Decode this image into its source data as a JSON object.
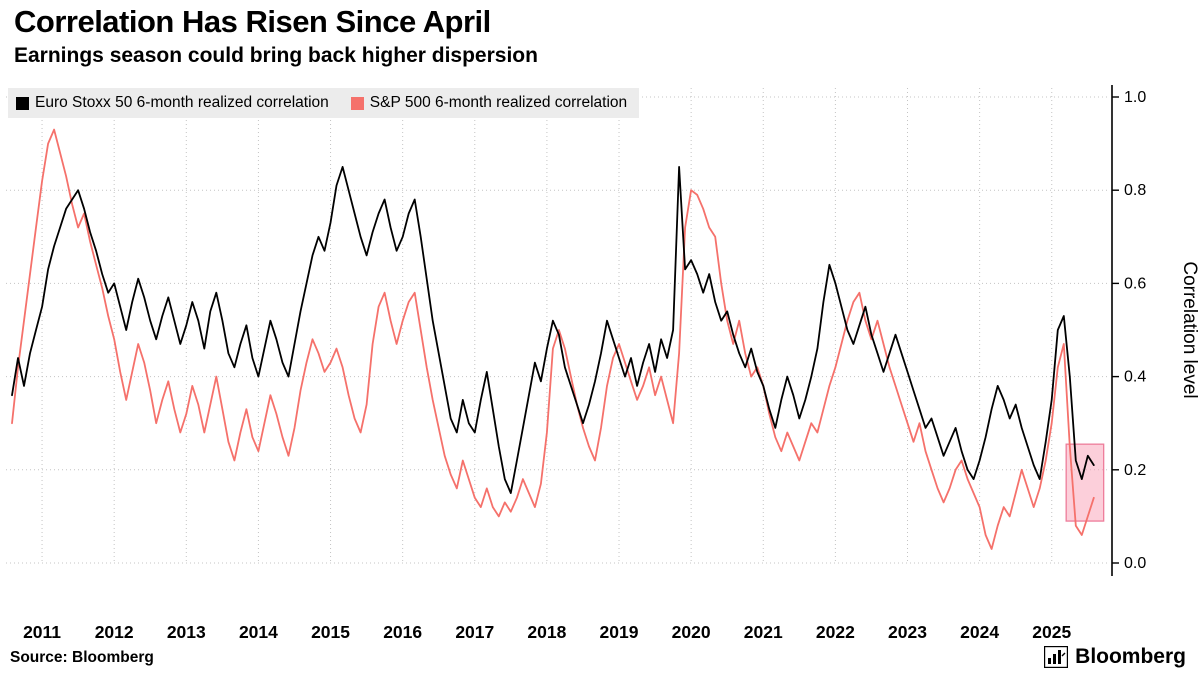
{
  "header": {
    "title": "Correlation Has Risen Since April",
    "subtitle": "Earnings season could bring back higher dispersion"
  },
  "legend": {
    "items": [
      {
        "label": "Euro Stoxx 50 6-month realized correlation",
        "color": "#000000"
      },
      {
        "label": "S&P 500 6-month realized correlation",
        "color": "#f5716b"
      }
    ]
  },
  "footer": {
    "source": "Source: Bloomberg",
    "brand": "Bloomberg"
  },
  "chart_data": {
    "type": "line",
    "title": "Correlation Has Risen Since April",
    "subtitle": "Earnings season could bring back higher dispersion",
    "xlabel": "",
    "ylabel": "Correlation level",
    "ylim": [
      0.0,
      1.0
    ],
    "y_ticks": [
      0.0,
      0.2,
      0.4,
      0.6,
      0.8,
      1.0
    ],
    "x_ticks": [
      2011,
      2012,
      2013,
      2014,
      2015,
      2016,
      2017,
      2018,
      2019,
      2020,
      2021,
      2022,
      2023,
      2024,
      2025
    ],
    "x_range": [
      2010.5,
      2025.78
    ],
    "x_start": 2010.5833,
    "x_step_years": 0.0833333,
    "grid": "dotted",
    "legend_position": "top-left",
    "series": [
      {
        "name": "Euro Stoxx 50 6-month realized correlation",
        "color": "#000000",
        "values": [
          0.36,
          0.44,
          0.38,
          0.45,
          0.5,
          0.55,
          0.63,
          0.68,
          0.72,
          0.76,
          0.78,
          0.8,
          0.76,
          0.71,
          0.67,
          0.62,
          0.58,
          0.6,
          0.55,
          0.5,
          0.56,
          0.61,
          0.57,
          0.52,
          0.48,
          0.53,
          0.57,
          0.52,
          0.47,
          0.51,
          0.56,
          0.52,
          0.46,
          0.54,
          0.58,
          0.52,
          0.45,
          0.42,
          0.47,
          0.51,
          0.44,
          0.4,
          0.46,
          0.52,
          0.48,
          0.43,
          0.4,
          0.47,
          0.54,
          0.6,
          0.66,
          0.7,
          0.67,
          0.73,
          0.81,
          0.85,
          0.8,
          0.75,
          0.7,
          0.66,
          0.71,
          0.75,
          0.78,
          0.72,
          0.67,
          0.7,
          0.75,
          0.78,
          0.7,
          0.61,
          0.52,
          0.45,
          0.38,
          0.31,
          0.28,
          0.35,
          0.3,
          0.28,
          0.35,
          0.41,
          0.33,
          0.25,
          0.18,
          0.15,
          0.22,
          0.29,
          0.36,
          0.43,
          0.39,
          0.46,
          0.52,
          0.49,
          0.42,
          0.38,
          0.34,
          0.3,
          0.34,
          0.39,
          0.45,
          0.52,
          0.48,
          0.44,
          0.4,
          0.44,
          0.38,
          0.43,
          0.47,
          0.41,
          0.48,
          0.44,
          0.5,
          0.85,
          0.63,
          0.65,
          0.62,
          0.58,
          0.62,
          0.56,
          0.52,
          0.54,
          0.49,
          0.45,
          0.42,
          0.46,
          0.41,
          0.38,
          0.33,
          0.29,
          0.35,
          0.4,
          0.36,
          0.31,
          0.35,
          0.4,
          0.46,
          0.56,
          0.64,
          0.6,
          0.55,
          0.5,
          0.47,
          0.51,
          0.55,
          0.49,
          0.45,
          0.41,
          0.45,
          0.49,
          0.45,
          0.41,
          0.37,
          0.33,
          0.29,
          0.31,
          0.27,
          0.23,
          0.26,
          0.29,
          0.24,
          0.2,
          0.18,
          0.22,
          0.27,
          0.33,
          0.38,
          0.35,
          0.31,
          0.34,
          0.29,
          0.25,
          0.21,
          0.18,
          0.26,
          0.35,
          0.5,
          0.53,
          0.4,
          0.22,
          0.18,
          0.23,
          0.21
        ]
      },
      {
        "name": "S&P 500 6-month realized correlation",
        "color": "#f5716b",
        "values": [
          0.3,
          0.42,
          0.52,
          0.62,
          0.72,
          0.82,
          0.9,
          0.93,
          0.88,
          0.83,
          0.77,
          0.72,
          0.75,
          0.69,
          0.64,
          0.59,
          0.53,
          0.48,
          0.41,
          0.35,
          0.41,
          0.47,
          0.43,
          0.37,
          0.3,
          0.35,
          0.39,
          0.33,
          0.28,
          0.32,
          0.38,
          0.34,
          0.28,
          0.34,
          0.4,
          0.33,
          0.26,
          0.22,
          0.28,
          0.33,
          0.27,
          0.24,
          0.3,
          0.36,
          0.32,
          0.27,
          0.23,
          0.29,
          0.37,
          0.43,
          0.48,
          0.45,
          0.41,
          0.43,
          0.46,
          0.42,
          0.36,
          0.31,
          0.28,
          0.34,
          0.47,
          0.55,
          0.58,
          0.52,
          0.47,
          0.52,
          0.56,
          0.58,
          0.5,
          0.42,
          0.35,
          0.29,
          0.23,
          0.19,
          0.16,
          0.22,
          0.18,
          0.14,
          0.12,
          0.16,
          0.12,
          0.1,
          0.13,
          0.11,
          0.14,
          0.18,
          0.15,
          0.12,
          0.17,
          0.28,
          0.46,
          0.5,
          0.46,
          0.4,
          0.34,
          0.29,
          0.25,
          0.22,
          0.29,
          0.38,
          0.44,
          0.47,
          0.43,
          0.39,
          0.35,
          0.38,
          0.42,
          0.36,
          0.4,
          0.35,
          0.3,
          0.45,
          0.72,
          0.8,
          0.79,
          0.76,
          0.72,
          0.7,
          0.6,
          0.52,
          0.47,
          0.52,
          0.45,
          0.4,
          0.42,
          0.38,
          0.32,
          0.27,
          0.24,
          0.28,
          0.25,
          0.22,
          0.26,
          0.3,
          0.28,
          0.33,
          0.38,
          0.42,
          0.47,
          0.52,
          0.56,
          0.58,
          0.52,
          0.48,
          0.52,
          0.47,
          0.42,
          0.38,
          0.34,
          0.3,
          0.26,
          0.3,
          0.24,
          0.2,
          0.16,
          0.13,
          0.16,
          0.2,
          0.22,
          0.18,
          0.15,
          0.12,
          0.06,
          0.03,
          0.08,
          0.12,
          0.1,
          0.15,
          0.2,
          0.16,
          0.12,
          0.16,
          0.22,
          0.3,
          0.42,
          0.47,
          0.25,
          0.08,
          0.06,
          0.1,
          0.14
        ]
      }
    ],
    "highlight_region": {
      "x_from": 2025.2,
      "x_to": 2025.72,
      "y_from": 0.09,
      "y_to": 0.255,
      "fill": "#f9a8bc",
      "stroke": "#ee7d9b",
      "opacity": 0.55
    }
  },
  "colors": {
    "grid": "#c4c4c4",
    "axis": "#000000",
    "legend_background": "#ececec"
  }
}
